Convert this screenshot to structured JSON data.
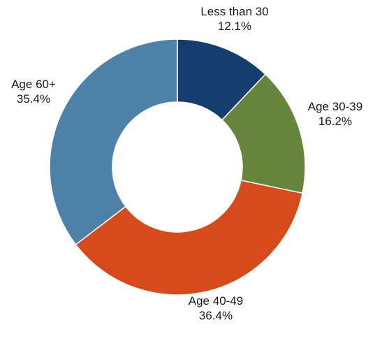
{
  "chart_data": {
    "type": "pie",
    "donut": true,
    "title": "",
    "legend": "none",
    "start_angle_deg": 0,
    "direction": "clockwise",
    "slices": [
      {
        "label": "Less than 30",
        "value": 12.1,
        "display": "12.1%",
        "color": "#153e6e"
      },
      {
        "label": "Age 30-39",
        "value": 16.2,
        "display": "16.2%",
        "color": "#67843c"
      },
      {
        "label": "Age 40-49",
        "value": 36.4,
        "display": "36.4%",
        "color": "#d64b1c"
      },
      {
        "label": "Age 60+",
        "value": 35.4,
        "display": "35.4%",
        "color": "#4e81a8"
      }
    ]
  }
}
